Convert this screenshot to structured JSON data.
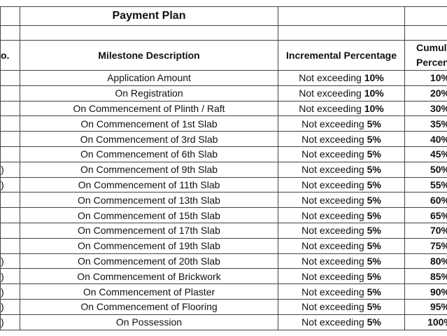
{
  "table": {
    "title": "Payment Plan",
    "header": {
      "no": "o.",
      "description": "Milestone Description",
      "incremental": "Incremental Percentage",
      "cumulative_line1": "Cumul",
      "cumulative_line2": "Percen"
    },
    "rows": [
      {
        "description": "Application Amount",
        "prefix": "Not exceeding",
        "percent": "10%",
        "cumulative": "10%"
      },
      {
        "description": "On Registration",
        "prefix": "Not exceeding",
        "percent": "10%",
        "cumulative": "20%"
      },
      {
        "description": "On Commencement of Plinth / Raft",
        "prefix": "Not exceeding",
        "percent": "10%",
        "cumulative": "30%"
      },
      {
        "description": "On Commencement of 1st Slab",
        "prefix": "Not exceeding",
        "percent": "5%",
        "cumulative": "35%"
      },
      {
        "description": "On Commencement of 3rd Slab",
        "prefix": "Not exceeding",
        "percent": "5%",
        "cumulative": "40%"
      },
      {
        "description": "On Commencement of 6th Slab",
        "prefix": "Not exceeding",
        "percent": "5%",
        "cumulative": "45%"
      },
      {
        "no": ")",
        "description": "On Commencement of 9th Slab",
        "prefix": "Not exceeding",
        "percent": "5%",
        "cumulative": "50%"
      },
      {
        "no": ")",
        "description": "On Commencement of 11th Slab",
        "prefix": "Not exceeding",
        "percent": "5%",
        "cumulative": "55%"
      },
      {
        "description": "On Commencement of 13th Slab",
        "prefix": "Not exceeding",
        "percent": "5%",
        "cumulative": "60%"
      },
      {
        "description": "On Commencement of 15th Slab",
        "prefix": "Not exceeding",
        "percent": "5%",
        "cumulative": "65%"
      },
      {
        "description": "On Commencement of 17th Slab",
        "prefix": "Not exceeding",
        "percent": "5%",
        "cumulative": "70%"
      },
      {
        "description": "On Commencement of 19th Slab",
        "prefix": "Not exceeding",
        "percent": "5%",
        "cumulative": "75%"
      },
      {
        "no": ")",
        "description": "On Commencement of 20th Slab",
        "prefix": "Not exceeding",
        "percent": "5%",
        "cumulative": "80%"
      },
      {
        "no": ")",
        "description": "On Commencement of Brickwork",
        "prefix": "Not exceeding",
        "percent": "5%",
        "cumulative": "85%"
      },
      {
        "no": ")",
        "description": "On Commencement of Plaster",
        "prefix": "Not exceeding",
        "percent": "5%",
        "cumulative": "90%"
      },
      {
        "no": ")",
        "description": "On Commencement of Flooring",
        "prefix": "Not exceeding",
        "percent": "5%",
        "cumulative": "95%"
      },
      {
        "no": ")",
        "description": "On Possession",
        "prefix": "Not exceeding",
        "percent": "5%",
        "cumulative": "100%"
      }
    ]
  }
}
